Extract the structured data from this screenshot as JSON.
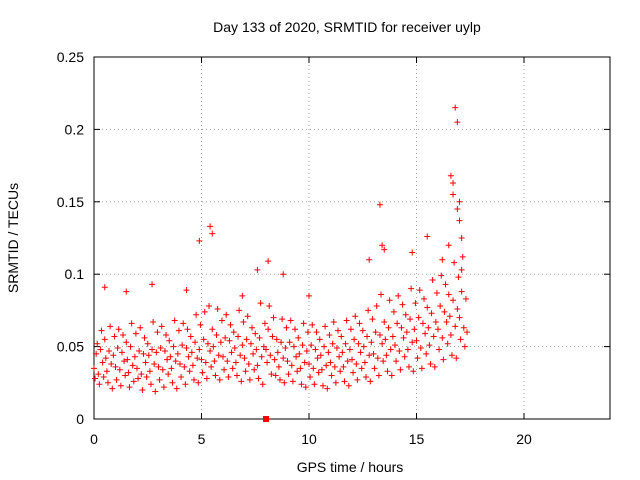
{
  "chart_data": {
    "type": "scatter",
    "title": "Day 133 of 2020, SRMTID for receiver uylp",
    "xlabel": "GPS time / hours",
    "ylabel": "SRMTID / TECUs",
    "xlim": [
      0,
      24
    ],
    "ylim": [
      0,
      0.25
    ],
    "xticks": [
      0,
      5,
      10,
      15,
      20
    ],
    "xtick_labels": [
      "0",
      "5",
      "10",
      "15",
      "20"
    ],
    "yticks": [
      0,
      0.05,
      0.1,
      0.15,
      0.2,
      0.25
    ],
    "ytick_labels": [
      "0",
      "0.05",
      "0.1",
      "0.15",
      "0.2",
      "0.25"
    ],
    "grid": true,
    "marker": "+",
    "color": "#ff0000",
    "series": [
      {
        "x": [
          0.0,
          0.05,
          0.1,
          0.15,
          0.2,
          0.25,
          0.3,
          0.35,
          0.4,
          0.45,
          0.5,
          0.55,
          0.6,
          0.65,
          0.7,
          0.75,
          0.8,
          0.85,
          0.9,
          0.95,
          1.0,
          1.05,
          1.1,
          1.15,
          1.2,
          1.25,
          1.3,
          1.35,
          1.4,
          1.45,
          1.5,
          1.55,
          1.6,
          1.65,
          1.7,
          1.75,
          1.8,
          1.85,
          1.9,
          1.95,
          2.0,
          2.05,
          2.1,
          2.15,
          2.2,
          2.25,
          2.3,
          2.35,
          2.4,
          2.45,
          2.5,
          2.55,
          2.6,
          2.65,
          2.7,
          2.75,
          2.8,
          2.85,
          2.9,
          2.95,
          3.0,
          3.05,
          3.1,
          3.15,
          3.2,
          3.25,
          3.3,
          3.35,
          3.4,
          3.45,
          3.5,
          3.55,
          3.6,
          3.65,
          3.7,
          3.75,
          3.8,
          3.85,
          3.9,
          3.95,
          4.0,
          4.05,
          4.1,
          4.15,
          4.2,
          4.25,
          4.3,
          4.35,
          4.4,
          4.45,
          4.5,
          4.55,
          4.6,
          4.65,
          4.7,
          4.75,
          4.8,
          4.85,
          4.9,
          4.95,
          5.0,
          5.05,
          5.1,
          5.15,
          5.2,
          5.25,
          5.3,
          5.35,
          5.4,
          5.45,
          5.5,
          5.55,
          5.6,
          5.65,
          5.7,
          5.75,
          5.8,
          5.85,
          5.9,
          5.95,
          6.0,
          6.05,
          6.1,
          6.15,
          6.2,
          6.25,
          6.3,
          6.35,
          6.4,
          6.45,
          6.5,
          6.55,
          6.6,
          6.65,
          6.7,
          6.75,
          6.8,
          6.85,
          6.9,
          6.95,
          7.0,
          7.05,
          7.1,
          7.15,
          7.2,
          7.25,
          7.3,
          7.35,
          7.4,
          7.45,
          7.5,
          7.55,
          7.6,
          7.65,
          7.7,
          7.75,
          7.8,
          7.85,
          7.9,
          7.95,
          8.0,
          8.05,
          8.1,
          8.15,
          8.2,
          8.25,
          8.3,
          8.35,
          8.4,
          8.45,
          8.5,
          8.55,
          8.6,
          8.65,
          8.7,
          8.75,
          8.8,
          8.85,
          8.9,
          8.95,
          9.0,
          9.05,
          9.1,
          9.15,
          9.2,
          9.25,
          9.3,
          9.35,
          9.4,
          9.45,
          9.5,
          9.55,
          9.6,
          9.65,
          9.7,
          9.75,
          9.8,
          9.85,
          9.9,
          9.95,
          10.0,
          10.05,
          10.1,
          10.15,
          10.2,
          10.25,
          10.3,
          10.35,
          10.4,
          10.45,
          10.5,
          10.55,
          10.6,
          10.65,
          10.7,
          10.75,
          10.8,
          10.85,
          10.9,
          10.95,
          11.0,
          11.05,
          11.1,
          11.15,
          11.2,
          11.25,
          11.3,
          11.35,
          11.4,
          11.45,
          11.5,
          11.55,
          11.6,
          11.65,
          11.7,
          11.75,
          11.8,
          11.85,
          11.9,
          11.95,
          12.0,
          12.05,
          12.1,
          12.15,
          12.2,
          12.25,
          12.3,
          12.35,
          12.4,
          12.45,
          12.5,
          12.55,
          12.6,
          12.65,
          12.7,
          12.75,
          12.8,
          12.85,
          12.9,
          12.95,
          13.0,
          13.05,
          13.1,
          13.15,
          13.2,
          13.25,
          13.3,
          13.35,
          13.4,
          13.45,
          13.5,
          13.55,
          13.6,
          13.65,
          13.7,
          13.75,
          13.8,
          13.85,
          13.9,
          13.95,
          14.0,
          14.05,
          14.1,
          14.15,
          14.2,
          14.25,
          14.3,
          14.35,
          14.4,
          14.45,
          14.5,
          14.55,
          14.6,
          14.65,
          14.7,
          14.75,
          14.8,
          14.85,
          14.9,
          14.95,
          15.0,
          15.05,
          15.1,
          15.15,
          15.2,
          15.25,
          15.3,
          15.35,
          15.4,
          15.45,
          15.5,
          15.55,
          15.6,
          15.65,
          15.7,
          15.75,
          15.8,
          15.85,
          15.9,
          15.95,
          16.0,
          16.05,
          16.1,
          16.15,
          16.2,
          16.25,
          16.3,
          16.35,
          16.4,
          16.45,
          16.5,
          16.55,
          16.6,
          16.65,
          16.7,
          16.75,
          16.8,
          16.85,
          16.9,
          16.95,
          17.0,
          17.05,
          17.1,
          17.15,
          17.2,
          17.25,
          17.3,
          17.35,
          0.5,
          1.5,
          2.7,
          4.3,
          4.9,
          5.4,
          5.5,
          6.9,
          7.6,
          8.1,
          8.8,
          10.0,
          12.8,
          13.3,
          13.4,
          13.5,
          14.8,
          15.5,
          16.2,
          16.5,
          16.6,
          16.7,
          16.8,
          16.9,
          17.0,
          17.0,
          17.1,
          17.1,
          16.9,
          16.7
        ],
        "y": [
          0.035,
          0.028,
          0.045,
          0.052,
          0.031,
          0.024,
          0.048,
          0.061,
          0.039,
          0.029,
          0.055,
          0.042,
          0.033,
          0.025,
          0.047,
          0.064,
          0.038,
          0.021,
          0.044,
          0.057,
          0.036,
          0.027,
          0.049,
          0.062,
          0.034,
          0.023,
          0.046,
          0.058,
          0.04,
          0.03,
          0.053,
          0.041,
          0.032,
          0.022,
          0.05,
          0.066,
          0.037,
          0.026,
          0.043,
          0.059,
          0.035,
          0.028,
          0.047,
          0.063,
          0.031,
          0.02,
          0.045,
          0.056,
          0.039,
          0.029,
          0.052,
          0.044,
          0.033,
          0.024,
          0.048,
          0.067,
          0.038,
          0.019,
          0.046,
          0.06,
          0.036,
          0.027,
          0.049,
          0.064,
          0.034,
          0.022,
          0.047,
          0.058,
          0.041,
          0.031,
          0.054,
          0.043,
          0.035,
          0.025,
          0.05,
          0.068,
          0.04,
          0.021,
          0.045,
          0.061,
          0.038,
          0.029,
          0.051,
          0.066,
          0.036,
          0.024,
          0.049,
          0.062,
          0.043,
          0.033,
          0.057,
          0.046,
          0.037,
          0.027,
          0.053,
          0.072,
          0.042,
          0.025,
          0.048,
          0.065,
          0.041,
          0.032,
          0.055,
          0.074,
          0.039,
          0.028,
          0.052,
          0.078,
          0.047,
          0.036,
          0.062,
          0.05,
          0.04,
          0.03,
          0.058,
          0.076,
          0.044,
          0.027,
          0.053,
          0.068,
          0.043,
          0.034,
          0.056,
          0.072,
          0.04,
          0.029,
          0.054,
          0.065,
          0.046,
          0.035,
          0.06,
          0.049,
          0.039,
          0.03,
          0.057,
          0.075,
          0.044,
          0.026,
          0.051,
          0.067,
          0.042,
          0.033,
          0.055,
          0.071,
          0.038,
          0.027,
          0.052,
          0.063,
          0.045,
          0.034,
          0.059,
          0.048,
          0.037,
          0.028,
          0.056,
          0.08,
          0.043,
          0.024,
          0.05,
          0.066,
          0.048,
          0.039,
          0.062,
          0.078,
          0.044,
          0.031,
          0.057,
          0.07,
          0.041,
          0.03,
          0.055,
          0.046,
          0.036,
          0.027,
          0.053,
          0.069,
          0.042,
          0.025,
          0.049,
          0.063,
          0.04,
          0.031,
          0.053,
          0.068,
          0.037,
          0.026,
          0.05,
          0.062,
          0.043,
          0.033,
          0.056,
          0.045,
          0.035,
          0.024,
          0.051,
          0.066,
          0.039,
          0.022,
          0.047,
          0.06,
          0.038,
          0.029,
          0.051,
          0.065,
          0.035,
          0.024,
          0.048,
          0.06,
          0.042,
          0.032,
          0.055,
          0.044,
          0.034,
          0.023,
          0.05,
          0.064,
          0.037,
          0.021,
          0.046,
          0.058,
          0.039,
          0.03,
          0.052,
          0.067,
          0.036,
          0.025,
          0.049,
          0.061,
          0.043,
          0.033,
          0.057,
          0.046,
          0.036,
          0.026,
          0.052,
          0.068,
          0.04,
          0.023,
          0.048,
          0.062,
          0.041,
          0.032,
          0.055,
          0.071,
          0.038,
          0.027,
          0.052,
          0.066,
          0.046,
          0.035,
          0.061,
          0.05,
          0.039,
          0.029,
          0.057,
          0.075,
          0.044,
          0.026,
          0.053,
          0.069,
          0.045,
          0.035,
          0.06,
          0.078,
          0.042,
          0.03,
          0.058,
          0.086,
          0.052,
          0.04,
          0.067,
          0.055,
          0.044,
          0.033,
          0.063,
          0.082,
          0.048,
          0.03,
          0.057,
          0.074,
          0.051,
          0.04,
          0.066,
          0.085,
          0.047,
          0.034,
          0.063,
          0.079,
          0.056,
          0.043,
          0.072,
          0.06,
          0.048,
          0.036,
          0.069,
          0.09,
          0.053,
          0.033,
          0.062,
          0.08,
          0.054,
          0.042,
          0.07,
          0.089,
          0.049,
          0.035,
          0.066,
          0.083,
          0.059,
          0.045,
          0.077,
          0.063,
          0.051,
          0.038,
          0.073,
          0.096,
          0.057,
          0.036,
          0.067,
          0.087,
          0.062,
          0.048,
          0.078,
          0.099,
          0.056,
          0.041,
          0.074,
          0.093,
          0.067,
          0.052,
          0.086,
          0.071,
          0.058,
          0.044,
          0.082,
          0.108,
          0.064,
          0.042,
          0.076,
          0.098,
          0.07,
          0.055,
          0.088,
          0.112,
          0.063,
          0.05,
          0.083,
          0.06,
          0.091,
          0.088,
          0.093,
          0.089,
          0.123,
          0.133,
          0.128,
          0.085,
          0.103,
          0.109,
          0.1,
          0.085,
          0.11,
          0.148,
          0.12,
          0.117,
          0.115,
          0.126,
          0.11,
          0.12,
          0.168,
          0.163,
          0.215,
          0.205,
          0.15,
          0.137,
          0.125,
          0.103,
          0.145,
          0.155
        ]
      }
    ],
    "special_marker": {
      "x": 8.0,
      "y": 0.0,
      "shape": "square"
    }
  }
}
